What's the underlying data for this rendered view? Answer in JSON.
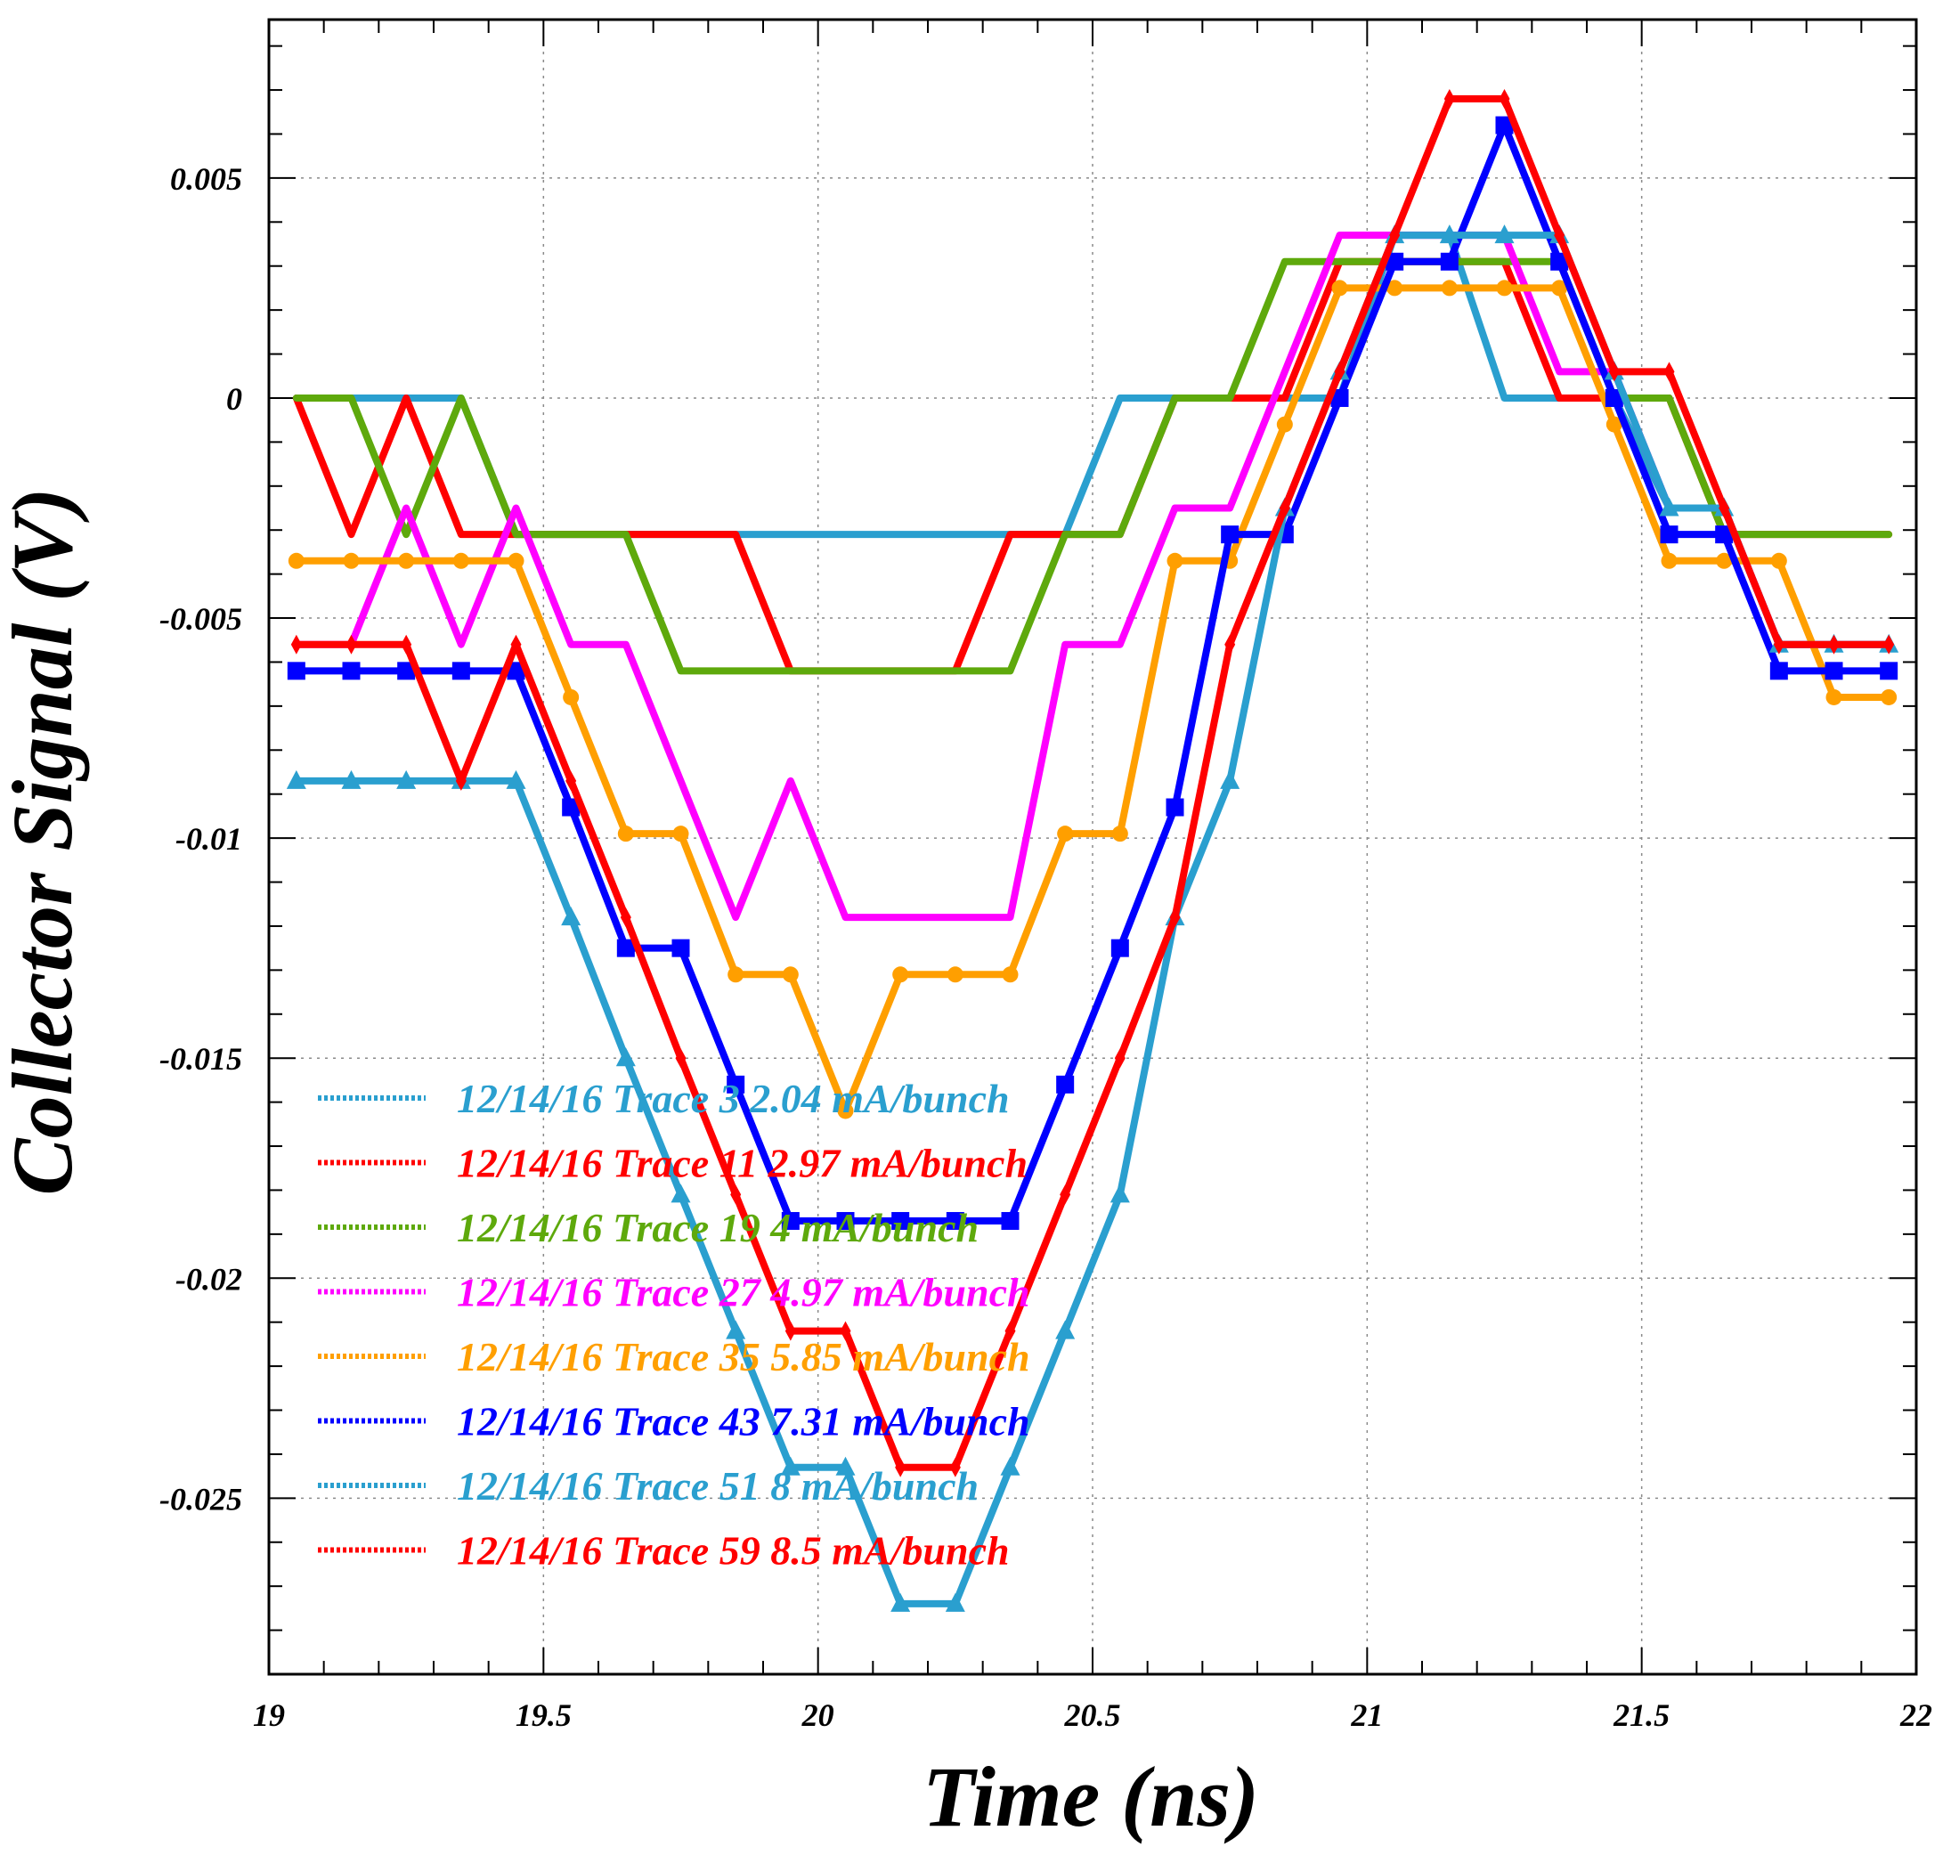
{
  "chart_data": {
    "type": "line",
    "xlabel": "Time (ns)",
    "ylabel": "Collector Signal (V)",
    "xlim": [
      19,
      22
    ],
    "ylim": [
      -0.029,
      0.0086
    ],
    "xticks": [
      19,
      19.5,
      20,
      20.5,
      21,
      21.5,
      22
    ],
    "xtick_labels": [
      "19",
      "19.5",
      "20",
      "20.5",
      "21",
      "21.5",
      "22"
    ],
    "yticks": [
      0.005,
      0,
      -0.005,
      -0.01,
      -0.015,
      -0.02,
      -0.025
    ],
    "ytick_labels": [
      "0.005",
      "0",
      "-0.005",
      "-0.01",
      "-0.015",
      "-0.02",
      "-0.025"
    ],
    "grid": true,
    "legend_position": "lower-left",
    "x": [
      19.05,
      19.15,
      19.25,
      19.35,
      19.45,
      19.55,
      19.65,
      19.75,
      19.85,
      19.95,
      20.05,
      20.15,
      20.25,
      20.35,
      20.45,
      20.55,
      20.65,
      20.75,
      20.85,
      20.95,
      21.05,
      21.15,
      21.25,
      21.35,
      21.45,
      21.55,
      21.65,
      21.75,
      21.85,
      21.95
    ],
    "series": [
      {
        "name": "12/14/16 Trace 3  2.04 mA/bunch",
        "color": "#2a9fcf",
        "marker": "none",
        "values": [
          0,
          0,
          0,
          0,
          -0.0031,
          -0.0031,
          -0.0031,
          -0.0031,
          -0.0031,
          -0.0031,
          -0.0031,
          -0.0031,
          -0.0031,
          -0.0031,
          -0.0031,
          0,
          0,
          0,
          0,
          0,
          0.0037,
          0.0037,
          0,
          0,
          0,
          -0.0025,
          -0.0025,
          -0.0056,
          -0.0056,
          -0.0056
        ]
      },
      {
        "name": "12/14/16 Trace 11  2.97 mA/bunch",
        "color": "#ff0000",
        "marker": "none",
        "values": [
          0,
          -0.0031,
          0,
          -0.0031,
          -0.0031,
          -0.0031,
          -0.0031,
          -0.0031,
          -0.0031,
          -0.0062,
          -0.0062,
          -0.0062,
          -0.0062,
          -0.0031,
          -0.0031,
          -0.0031,
          0,
          0,
          0,
          0.0031,
          0.0031,
          0.0031,
          0.0031,
          0,
          0,
          0,
          -0.0031,
          -0.0031,
          -0.0031,
          -0.0031
        ]
      },
      {
        "name": "12/14/16 Trace 19  4 mA/bunch",
        "color": "#5ea90c",
        "marker": "none",
        "values": [
          0,
          0,
          -0.0031,
          0,
          -0.0031,
          -0.0031,
          -0.0031,
          -0.0062,
          -0.0062,
          -0.0062,
          -0.0062,
          -0.0062,
          -0.0062,
          -0.0062,
          -0.0031,
          -0.0031,
          0,
          0,
          0.0031,
          0.0031,
          0.0031,
          0.0031,
          0.0031,
          0.0031,
          0,
          0,
          -0.0031,
          -0.0031,
          -0.0031,
          -0.0031
        ]
      },
      {
        "name": "12/14/16 Trace 27  4.97 mA/bunch",
        "color": "#ff00ff",
        "marker": "none",
        "values": [
          -0.0056,
          -0.0056,
          -0.0025,
          -0.0056,
          -0.0025,
          -0.0056,
          -0.0056,
          -0.0087,
          -0.0118,
          -0.0087,
          -0.0118,
          -0.0118,
          -0.0118,
          -0.0118,
          -0.0056,
          -0.0056,
          -0.0025,
          -0.0025,
          0.0006,
          0.0037,
          0.0037,
          0.0037,
          0.0037,
          0.0006,
          0.0006,
          -0.0025,
          -0.0025,
          -0.0056,
          -0.0056,
          -0.0056
        ]
      },
      {
        "name": "12/14/16 Trace 35  5.85 mA/bunch",
        "color": "#ff9f00",
        "marker": "circle",
        "values": [
          -0.0037,
          -0.0037,
          -0.0037,
          -0.0037,
          -0.0037,
          -0.0068,
          -0.0099,
          -0.0099,
          -0.0131,
          -0.0131,
          -0.0162,
          -0.0131,
          -0.0131,
          -0.0131,
          -0.0099,
          -0.0099,
          -0.0037,
          -0.0037,
          -0.0006,
          0.0025,
          0.0025,
          0.0025,
          0.0025,
          0.0025,
          -0.0006,
          -0.0037,
          -0.0037,
          -0.0037,
          -0.0068,
          -0.0068
        ]
      },
      {
        "name": "12/14/16 Trace 43  7.31 mA/bunch",
        "color": "#0000ff",
        "marker": "square",
        "values": [
          -0.0062,
          -0.0062,
          -0.0062,
          -0.0062,
          -0.0062,
          -0.0093,
          -0.0125,
          -0.0125,
          -0.0156,
          -0.0187,
          -0.0187,
          -0.0187,
          -0.0187,
          -0.0187,
          -0.0156,
          -0.0125,
          -0.0093,
          -0.0031,
          -0.0031,
          0,
          0.0031,
          0.0031,
          0.0062,
          0.0031,
          0,
          -0.0031,
          -0.0031,
          -0.0062,
          -0.0062,
          -0.0062
        ]
      },
      {
        "name": "12/14/16 Trace 51  8 mA/bunch",
        "color": "#2a9fcf",
        "marker": "triangle",
        "values": [
          -0.0087,
          -0.0087,
          -0.0087,
          -0.0087,
          -0.0087,
          -0.0118,
          -0.015,
          -0.0181,
          -0.0212,
          -0.0243,
          -0.0243,
          -0.0274,
          -0.0274,
          -0.0243,
          -0.0212,
          -0.0181,
          -0.0118,
          -0.0087,
          -0.0025,
          0.0006,
          0.0037,
          0.0037,
          0.0037,
          0.0037,
          0.0006,
          -0.0025,
          -0.0025,
          -0.0056,
          -0.0056,
          -0.0056
        ]
      },
      {
        "name": "12/14/16 Trace 59  8.5 mA/bunch",
        "color": "#ff0000",
        "marker": "diamond",
        "values": [
          -0.0056,
          -0.0056,
          -0.0056,
          -0.0087,
          -0.0056,
          -0.0087,
          -0.0118,
          -0.015,
          -0.0181,
          -0.0212,
          -0.0212,
          -0.0243,
          -0.0243,
          -0.0212,
          -0.0181,
          -0.015,
          -0.0118,
          -0.0056,
          -0.0025,
          0.0006,
          0.0037,
          0.0068,
          0.0068,
          0.0037,
          0.0006,
          0.0006,
          -0.0025,
          -0.0056,
          -0.0056,
          -0.0056
        ]
      }
    ]
  }
}
